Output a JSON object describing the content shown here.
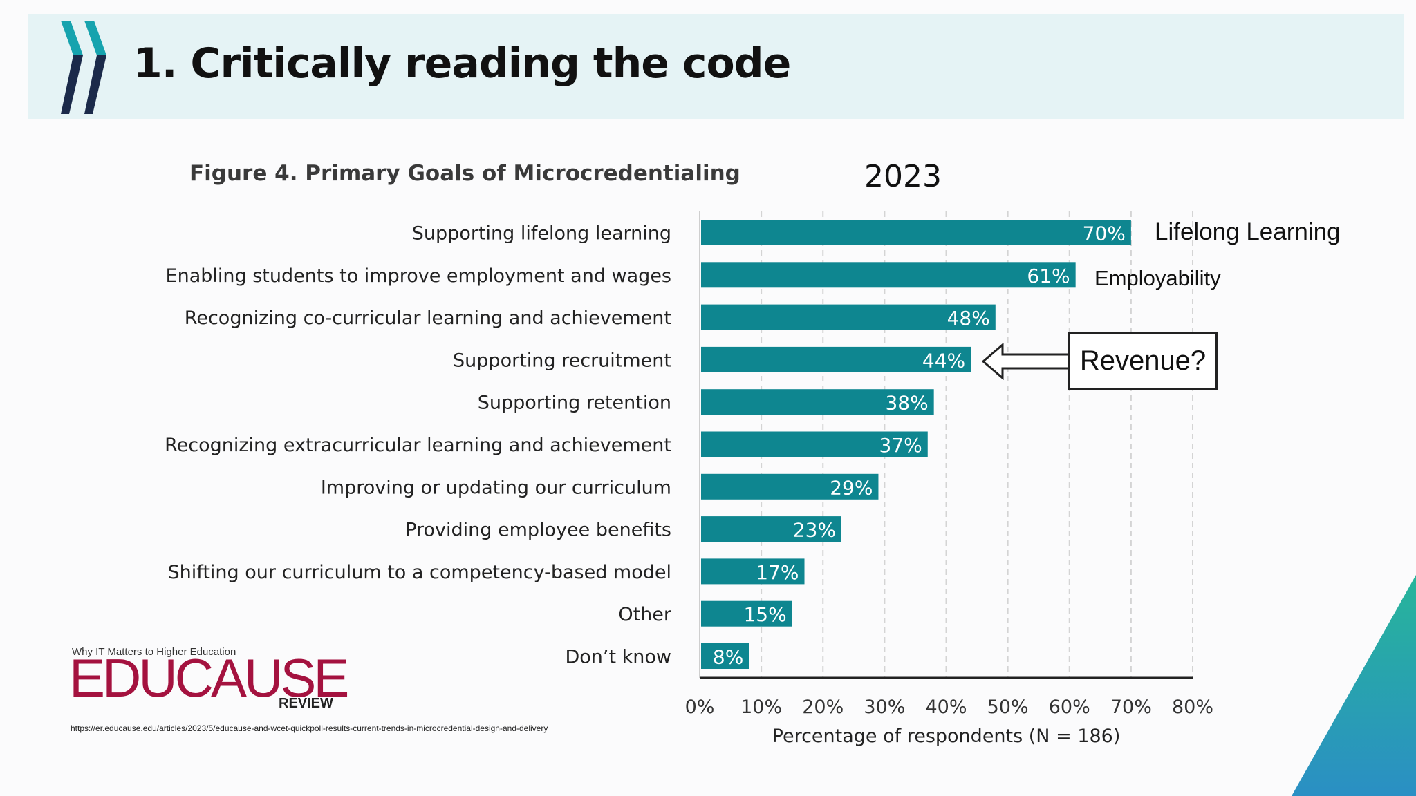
{
  "slide": {
    "title": "1. Critically reading the code"
  },
  "figure": {
    "title": "Figure 4. Primary Goals of Microcredentialing",
    "year": "2023"
  },
  "annotations": {
    "lifelong": "Lifelong Learning",
    "employability": "Employability",
    "revenue": "Revenue?"
  },
  "branding": {
    "tagline": "Why IT Matters to Higher Education",
    "wordmark": "EDUCAUSE",
    "review": "REVIEW",
    "source_url": "https://er.educause.edu/articles/2023/5/educause-and-wcet-quickpoll-results-current-trends-in-microcredential-design-and-delivery"
  },
  "colors": {
    "bar": "#0e8690",
    "header_band": "#e5f3f5",
    "logo_teal": "#16a3ae",
    "logo_navy": "#1b2a4a",
    "educause": "#a4123f"
  },
  "chart_data": {
    "type": "bar",
    "orientation": "horizontal",
    "title": "Figure 4. Primary Goals of Microcredentialing",
    "xlabel": "Percentage of respondents (N = 186)",
    "xlim": [
      0,
      80
    ],
    "xticks": [
      "0%",
      "10%",
      "20%",
      "30%",
      "40%",
      "50%",
      "60%",
      "70%",
      "80%"
    ],
    "grid": "vertical dashed",
    "categories": [
      "Supporting lifelong learning",
      "Enabling students to improve employment and wages",
      "Recognizing co-curricular learning and achievement",
      "Supporting recruitment",
      "Supporting retention",
      "Recognizing extracurricular learning and achievement",
      "Improving or updating our curriculum",
      "Providing employee benefits",
      "Shifting our curriculum to a competency-based model",
      "Other",
      "Don’t know"
    ],
    "values": [
      70,
      61,
      48,
      44,
      38,
      37,
      29,
      23,
      17,
      15,
      8
    ],
    "value_labels": [
      "70%",
      "61%",
      "48%",
      "44%",
      "38%",
      "37%",
      "29%",
      "23%",
      "17%",
      "15%",
      "8%"
    ]
  }
}
